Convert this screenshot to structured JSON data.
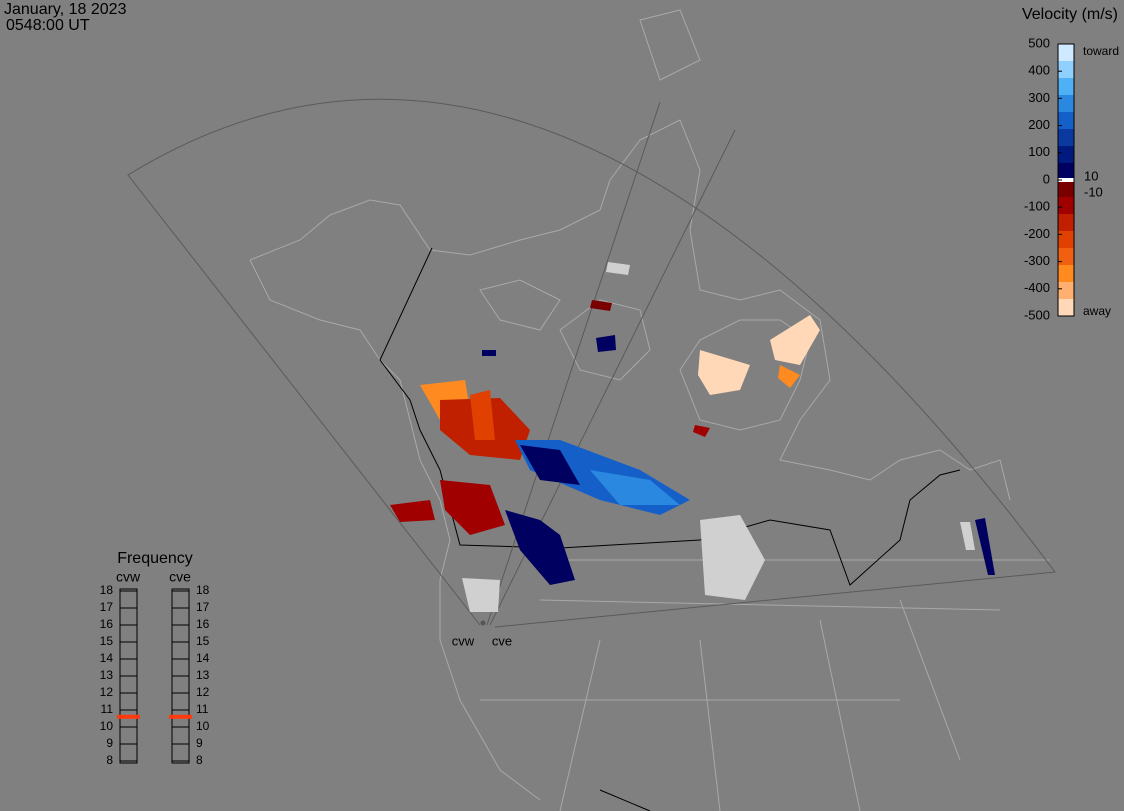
{
  "header": {
    "date": "January, 18 2023",
    "time": "0548:00 UT"
  },
  "colorbar": {
    "title": "Velocity (m/s)",
    "lim": [
      -500,
      500
    ],
    "ticks": [
      500,
      400,
      300,
      200,
      100,
      0,
      -100,
      -200,
      -300,
      -400,
      -500
    ],
    "inner_ticks": [
      10,
      -10
    ],
    "toward": "toward",
    "away": "away",
    "colors": [
      "#cfe9ff",
      "#8fd0ff",
      "#4fb0f5",
      "#2a88e0",
      "#1560c8",
      "#0a3aa0",
      "#001a80",
      "#000060",
      "#7a0000",
      "#a00000",
      "#c02000",
      "#e04000",
      "#f06010",
      "#ff8a20",
      "#ffb070",
      "#ffd8b8"
    ]
  },
  "frequency": {
    "title": "Frequency",
    "lim": [
      8,
      18
    ],
    "ticks": [
      18,
      17,
      16,
      15,
      14,
      13,
      12,
      11,
      10,
      9,
      8
    ],
    "radars": [
      {
        "name": "cvw",
        "value": 10.6
      },
      {
        "name": "cve",
        "value": 10.6
      }
    ]
  },
  "sites": [
    "cvw",
    "cve"
  ]
}
